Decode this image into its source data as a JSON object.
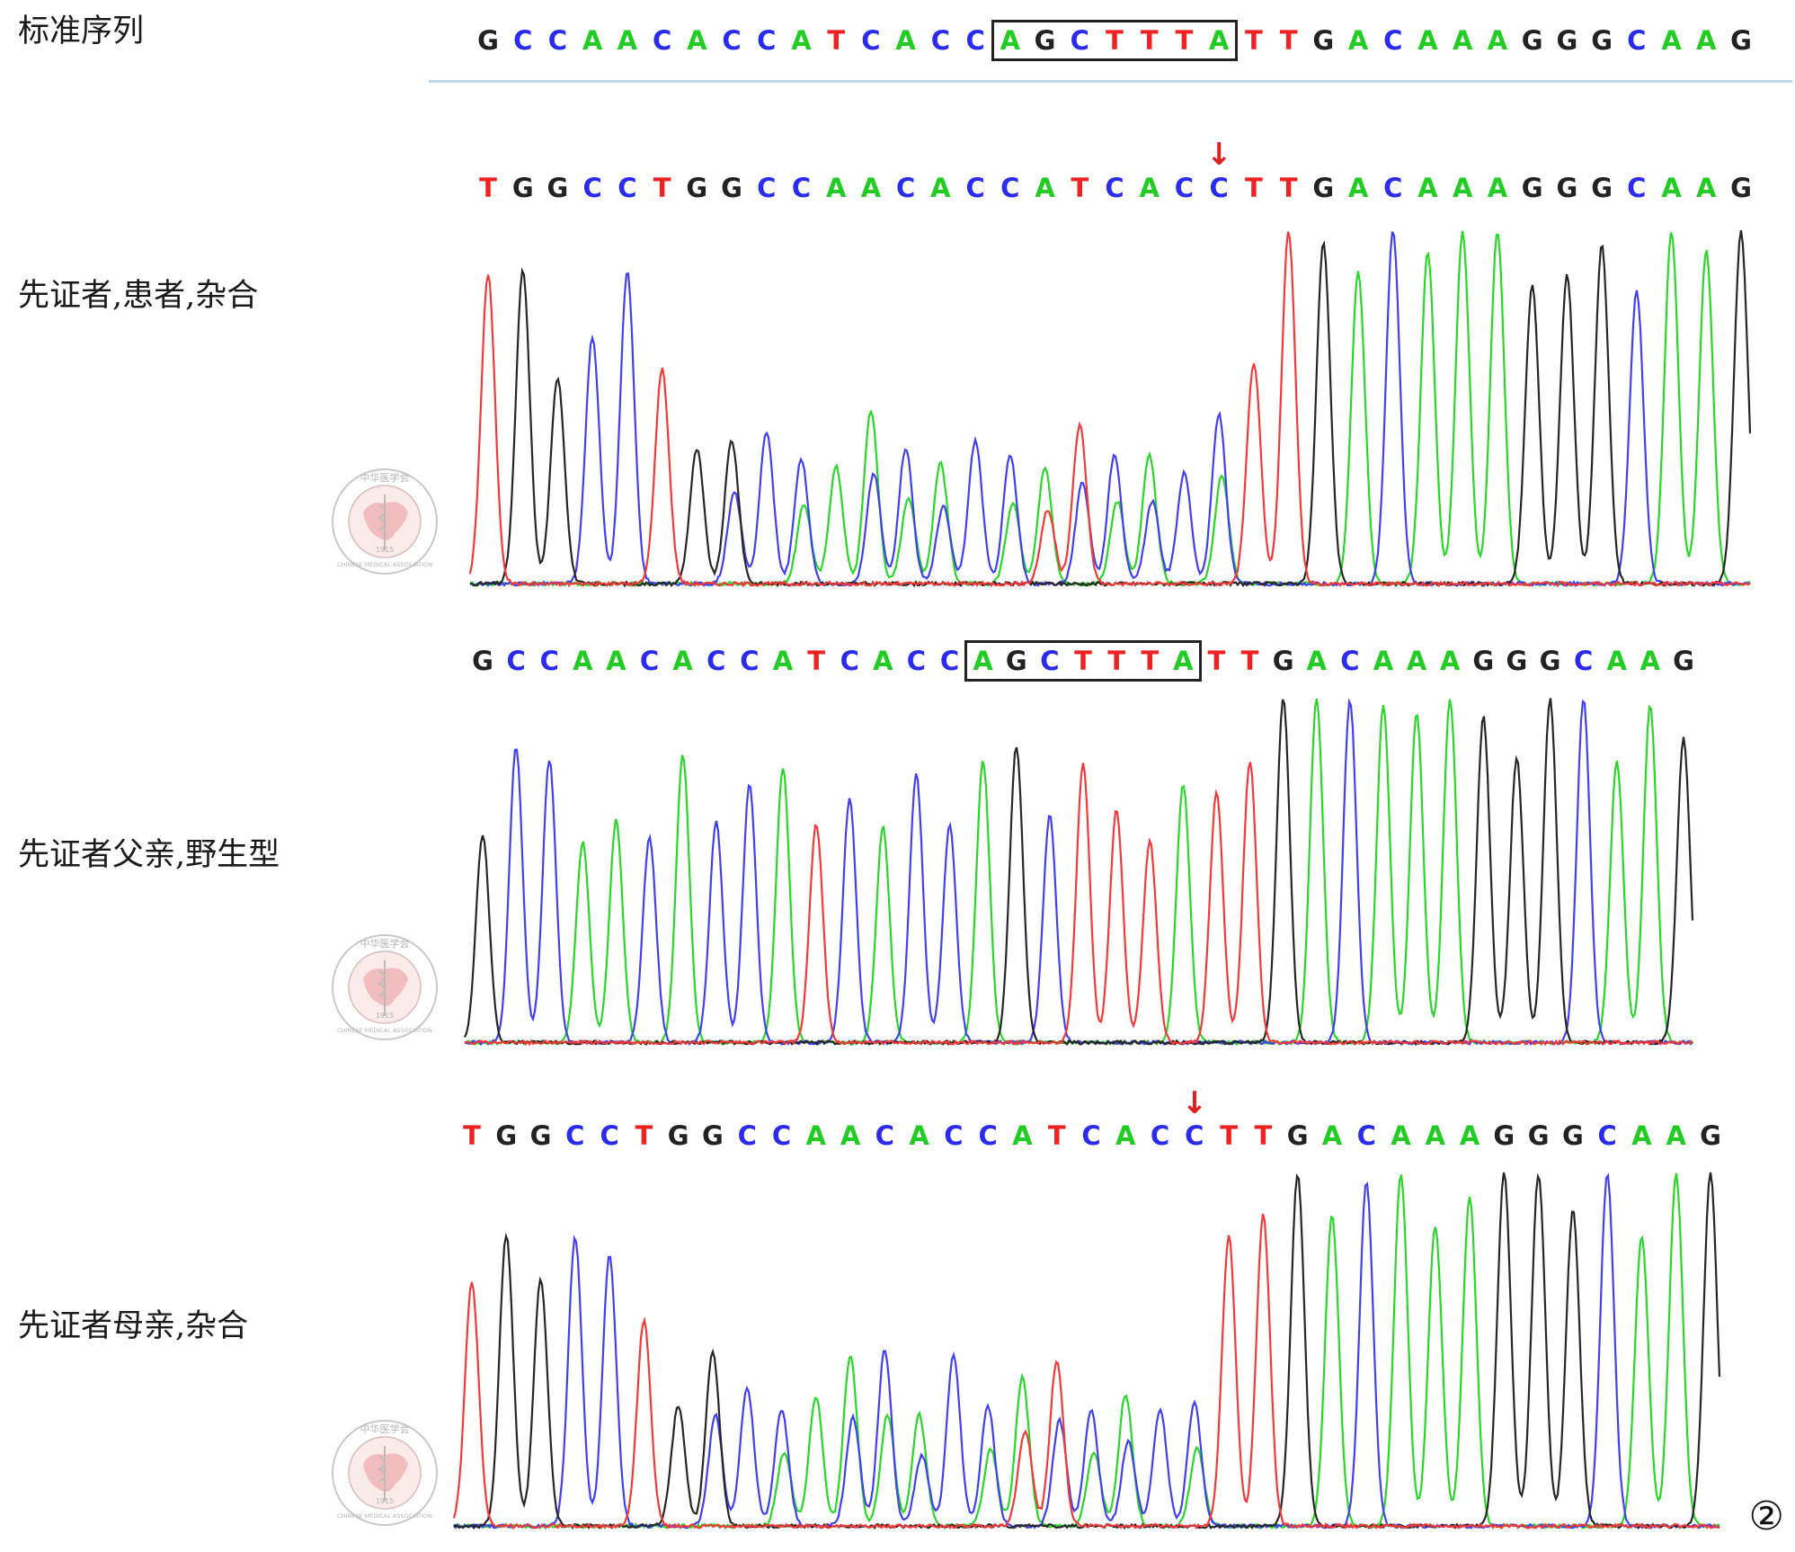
{
  "figure_number": "②",
  "reference": {
    "label": "标准序列",
    "sequence": "GCCAACACCATCACCAGCTTTATTGACAAAGGGCAAG",
    "boxed_range": [
      15,
      21
    ]
  },
  "rows": [
    {
      "id": "proband",
      "label": "先证者,患者,杂合",
      "sequence": "TGGCCTGGCCAACACCATCACCTTGACAAAGGGCAAG",
      "arrow_at": 21,
      "boxed_range": null,
      "heterozygous": true
    },
    {
      "id": "father",
      "label": "先证者父亲,野生型",
      "sequence": "GCCAACACCATCACCAGCTTTATTGACAAAGGGCAAG",
      "arrow_at": null,
      "boxed_range": [
        15,
        21
      ],
      "heterozygous": false
    },
    {
      "id": "mother",
      "label": "先证者母亲,杂合",
      "sequence": "TGGCCTGGCCAACACCATCACCTTGACAAAGGGCAAG",
      "arrow_at": 21,
      "boxed_range": null,
      "heterozygous": true
    }
  ],
  "base_colors": {
    "A": "#22cc22",
    "C": "#2b2bf0",
    "G": "#222222",
    "T": "#ee2222"
  },
  "trace_colors": {
    "A": "#29d629",
    "C": "#4040ee",
    "G": "#262626",
    "T": "#f03a3a"
  },
  "seal": {
    "text_cn": "中华医学会",
    "text_en": "CHINESE MEDICAL ASSOCIATION",
    "year": "1915"
  }
}
